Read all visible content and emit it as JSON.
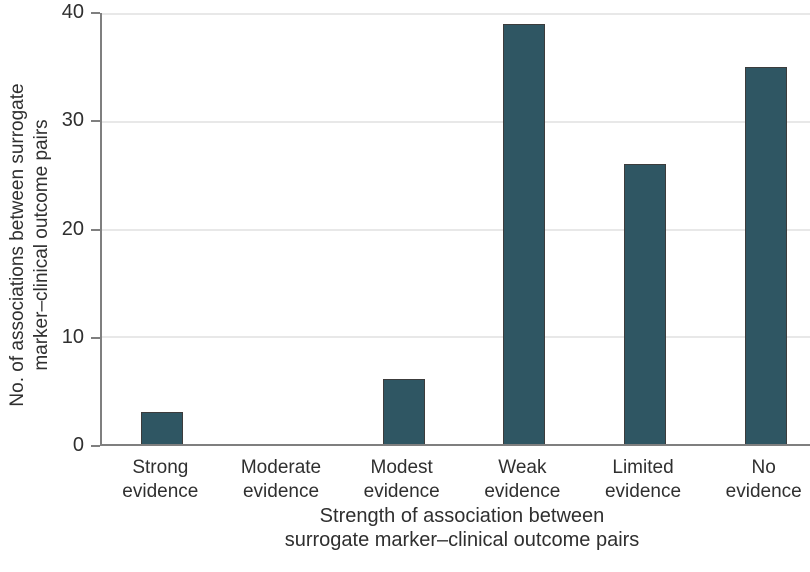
{
  "chart_data": {
    "type": "bar",
    "categories": [
      "Strong evidence",
      "Moderate evidence",
      "Modest evidence",
      "Weak evidence",
      "Limited evidence",
      "No evidence"
    ],
    "values": [
      3,
      0,
      6,
      39,
      26,
      35
    ],
    "title": "",
    "xlabel": "Strength of association between surrogate marker–clinical outcome pairs",
    "xlabel_lines": [
      "Strength of association between",
      "surrogate marker–clinical outcome pairs"
    ],
    "ylabel": "No. of associations between surrogate marker–clinical outcome pairs",
    "ylabel_lines": [
      "No. of associations between surrogate",
      "marker–clinical outcome pairs"
    ],
    "ylim": [
      0,
      40
    ],
    "yticks": [
      0,
      10,
      20,
      30,
      40
    ],
    "grid": "horizontal",
    "legend": "none",
    "colors": {
      "bar_fill": "#2f5663",
      "bar_border": "#3c3c3c",
      "axis": "#7f7f7f",
      "gridline": "#e8e8e8",
      "text": "#2f2f2f",
      "background": "#ffffff"
    }
  }
}
